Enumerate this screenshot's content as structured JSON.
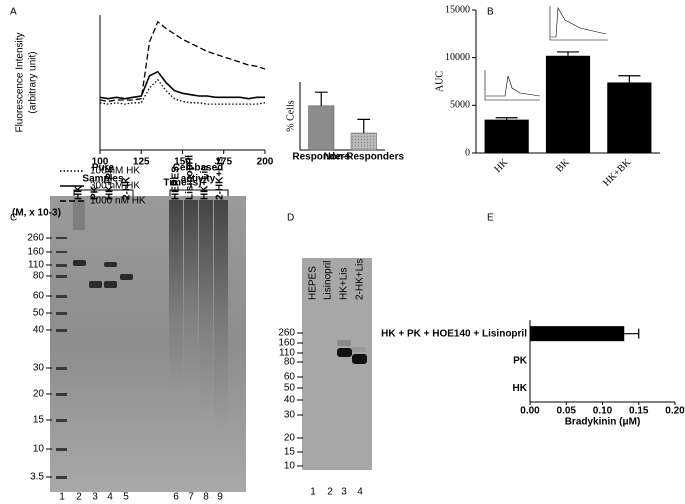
{
  "panel_labels": [
    "A",
    "B",
    "C",
    "D",
    "E"
  ],
  "chart_data": [
    {
      "type": "line",
      "y_label": [
        "Fluorescence Intensity",
        "(arbitrary unit)"
      ],
      "x_label": "Time (s)",
      "x": [
        100,
        105,
        110,
        115,
        120,
        125,
        130,
        135,
        140,
        145,
        150,
        155,
        160,
        165,
        170,
        175,
        180,
        185,
        190,
        195,
        200
      ],
      "xlim": [
        100,
        200
      ],
      "xticks": [
        100,
        125,
        150,
        175,
        200
      ],
      "ylim": [
        0,
        100
      ],
      "series": [
        {
          "name": "100 nM HK",
          "color": "#000000",
          "dash": "dotted",
          "values": [
            35,
            34,
            35,
            34,
            35,
            35,
            46,
            52,
            44,
            38,
            36,
            35,
            35,
            34,
            34,
            34,
            34,
            34,
            34,
            34,
            35
          ]
        },
        {
          "name": "300 nM HK",
          "color": "#000000",
          "dash": "solid",
          "values": [
            39,
            38,
            39,
            38,
            39,
            40,
            55,
            58,
            50,
            44,
            42,
            41,
            40,
            40,
            39,
            39,
            39,
            39,
            38,
            39,
            39
          ]
        },
        {
          "name": "1000 nM HK",
          "color": "#000000",
          "dash": "dashed",
          "values": [
            37,
            36,
            37,
            37,
            37,
            38,
            80,
            95,
            90,
            86,
            82,
            79,
            76,
            73,
            71,
            69,
            67,
            65,
            63,
            62,
            60
          ]
        }
      ]
    },
    {
      "type": "bar",
      "y_label": "% Cells",
      "categories": [
        "Responders",
        "Non-Responders"
      ],
      "values": [
        65,
        25
      ],
      "errors": [
        20,
        20
      ],
      "colors": [
        "#8c8c8c",
        "#b5b5b5"
      ],
      "ylim": [
        0,
        100
      ]
    },
    {
      "type": "bar",
      "y_label": "AUC",
      "categories": [
        "HK",
        "BK",
        "HK+BK"
      ],
      "values": [
        3500,
        10200,
        7400
      ],
      "errors": [
        200,
        400,
        700
      ],
      "colors": [
        "#000000",
        "#000000",
        "#000000"
      ],
      "ylim": [
        0,
        15000
      ],
      "yticks": [
        0,
        5000,
        10000,
        15000
      ]
    },
    {
      "type": "hbar",
      "x_label": "Bradykinin (μM)",
      "categories": [
        "HK + PK + HOE140 + Lisinopril",
        "PK",
        "HK"
      ],
      "values": [
        0.13,
        0,
        0
      ],
      "errors": [
        0.02,
        0,
        0
      ],
      "color": "#000000",
      "xlim": [
        0,
        0.2
      ],
      "xticks": [
        {
          "value": 0,
          "label": "0.00"
        },
        {
          "value": 0.05,
          "label": "0.05"
        },
        {
          "value": 0.1,
          "label": "0.10"
        },
        {
          "value": 0.15,
          "label": "0.15"
        },
        {
          "value": 0.2,
          "label": "0.20"
        }
      ]
    }
  ],
  "gels": [
    {
      "marker_label": "(M, x 10-3)",
      "groups": [
        [
          "Pure",
          "Samples"
        ],
        [
          "Cell-based",
          "activity"
        ]
      ],
      "lanes": [
        "HK",
        "PK",
        "HK+PK",
        "2-HK",
        "HEPES",
        "Lisinopril",
        "HK+Lis",
        "2-HK+Lis"
      ],
      "markers": [
        260,
        160,
        110,
        80,
        60,
        50,
        40,
        30,
        20,
        15,
        10,
        3.5
      ],
      "lane_numbers": [
        1,
        2,
        3,
        4,
        5,
        6,
        7,
        8,
        9
      ]
    },
    {
      "lanes": [
        "HEPES",
        "Lisinopril",
        "HK+Lis",
        "2-HK+Lis"
      ],
      "markers": [
        260,
        160,
        110,
        80,
        60,
        50,
        40,
        30,
        20,
        15,
        10
      ],
      "lane_numbers": [
        1,
        2,
        3,
        4
      ]
    }
  ]
}
